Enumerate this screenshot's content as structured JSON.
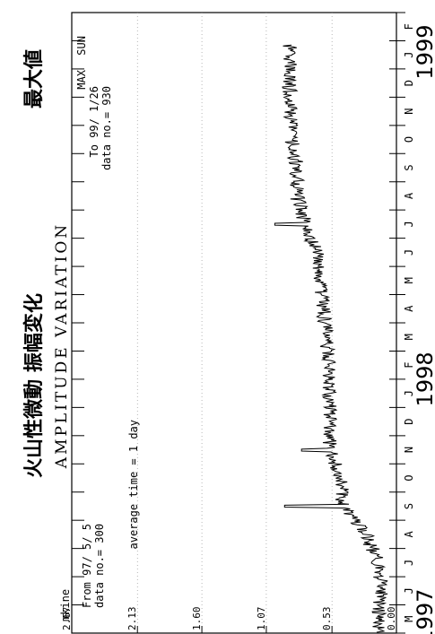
{
  "chart_data": {
    "type": "line",
    "title_jp": "火山性微動 振幅変化",
    "title_en": "AMPLITUDE VARIATION",
    "ylabel_unit": "mkine",
    "y_ticks": [
      "2.67",
      "2.13",
      "1.60",
      "1.07",
      "0.53",
      "0.00"
    ],
    "ylim": [
      0,
      2.67
    ],
    "start_label": "From 97/ 5/ 5",
    "start_data_no": "data no.= 300",
    "average_note": "average time = 1 day",
    "max_label": "MAX",
    "max_weekday": "SUN",
    "max_title": "最大値",
    "end_label": "To 99/ 1/26",
    "end_data_no": "data no.= 930",
    "months": [
      "M",
      "J",
      "J",
      "A",
      "S",
      "O",
      "N",
      "D",
      "J",
      "F",
      "M",
      "A",
      "M",
      "J",
      "J",
      "A",
      "S",
      "O",
      "N",
      "D",
      "J",
      "F"
    ],
    "years": [
      "1997",
      "1998",
      "1999"
    ],
    "x": [
      "1997-05",
      "1997-06",
      "1997-07",
      "1997-08",
      "1997-09",
      "1997-10",
      "1997-11",
      "1997-12",
      "1998-01",
      "1998-02",
      "1998-03",
      "1998-04",
      "1998-05",
      "1998-06",
      "1998-07",
      "1998-08",
      "1998-09",
      "1998-10",
      "1998-11",
      "1998-12",
      "1999-01"
    ],
    "values": [
      0.15,
      0.12,
      0.15,
      0.25,
      0.45,
      0.45,
      0.55,
      0.55,
      0.55,
      0.55,
      0.58,
      0.6,
      0.63,
      0.66,
      0.75,
      0.82,
      0.82,
      0.86,
      0.87,
      0.88,
      0.88
    ],
    "peaks": [
      {
        "x": "1997-09",
        "value": 0.92
      },
      {
        "x": "1997-11",
        "value": 0.78
      },
      {
        "x": "1998-07",
        "value": 1.0
      }
    ],
    "grid": true,
    "legend": "none"
  }
}
